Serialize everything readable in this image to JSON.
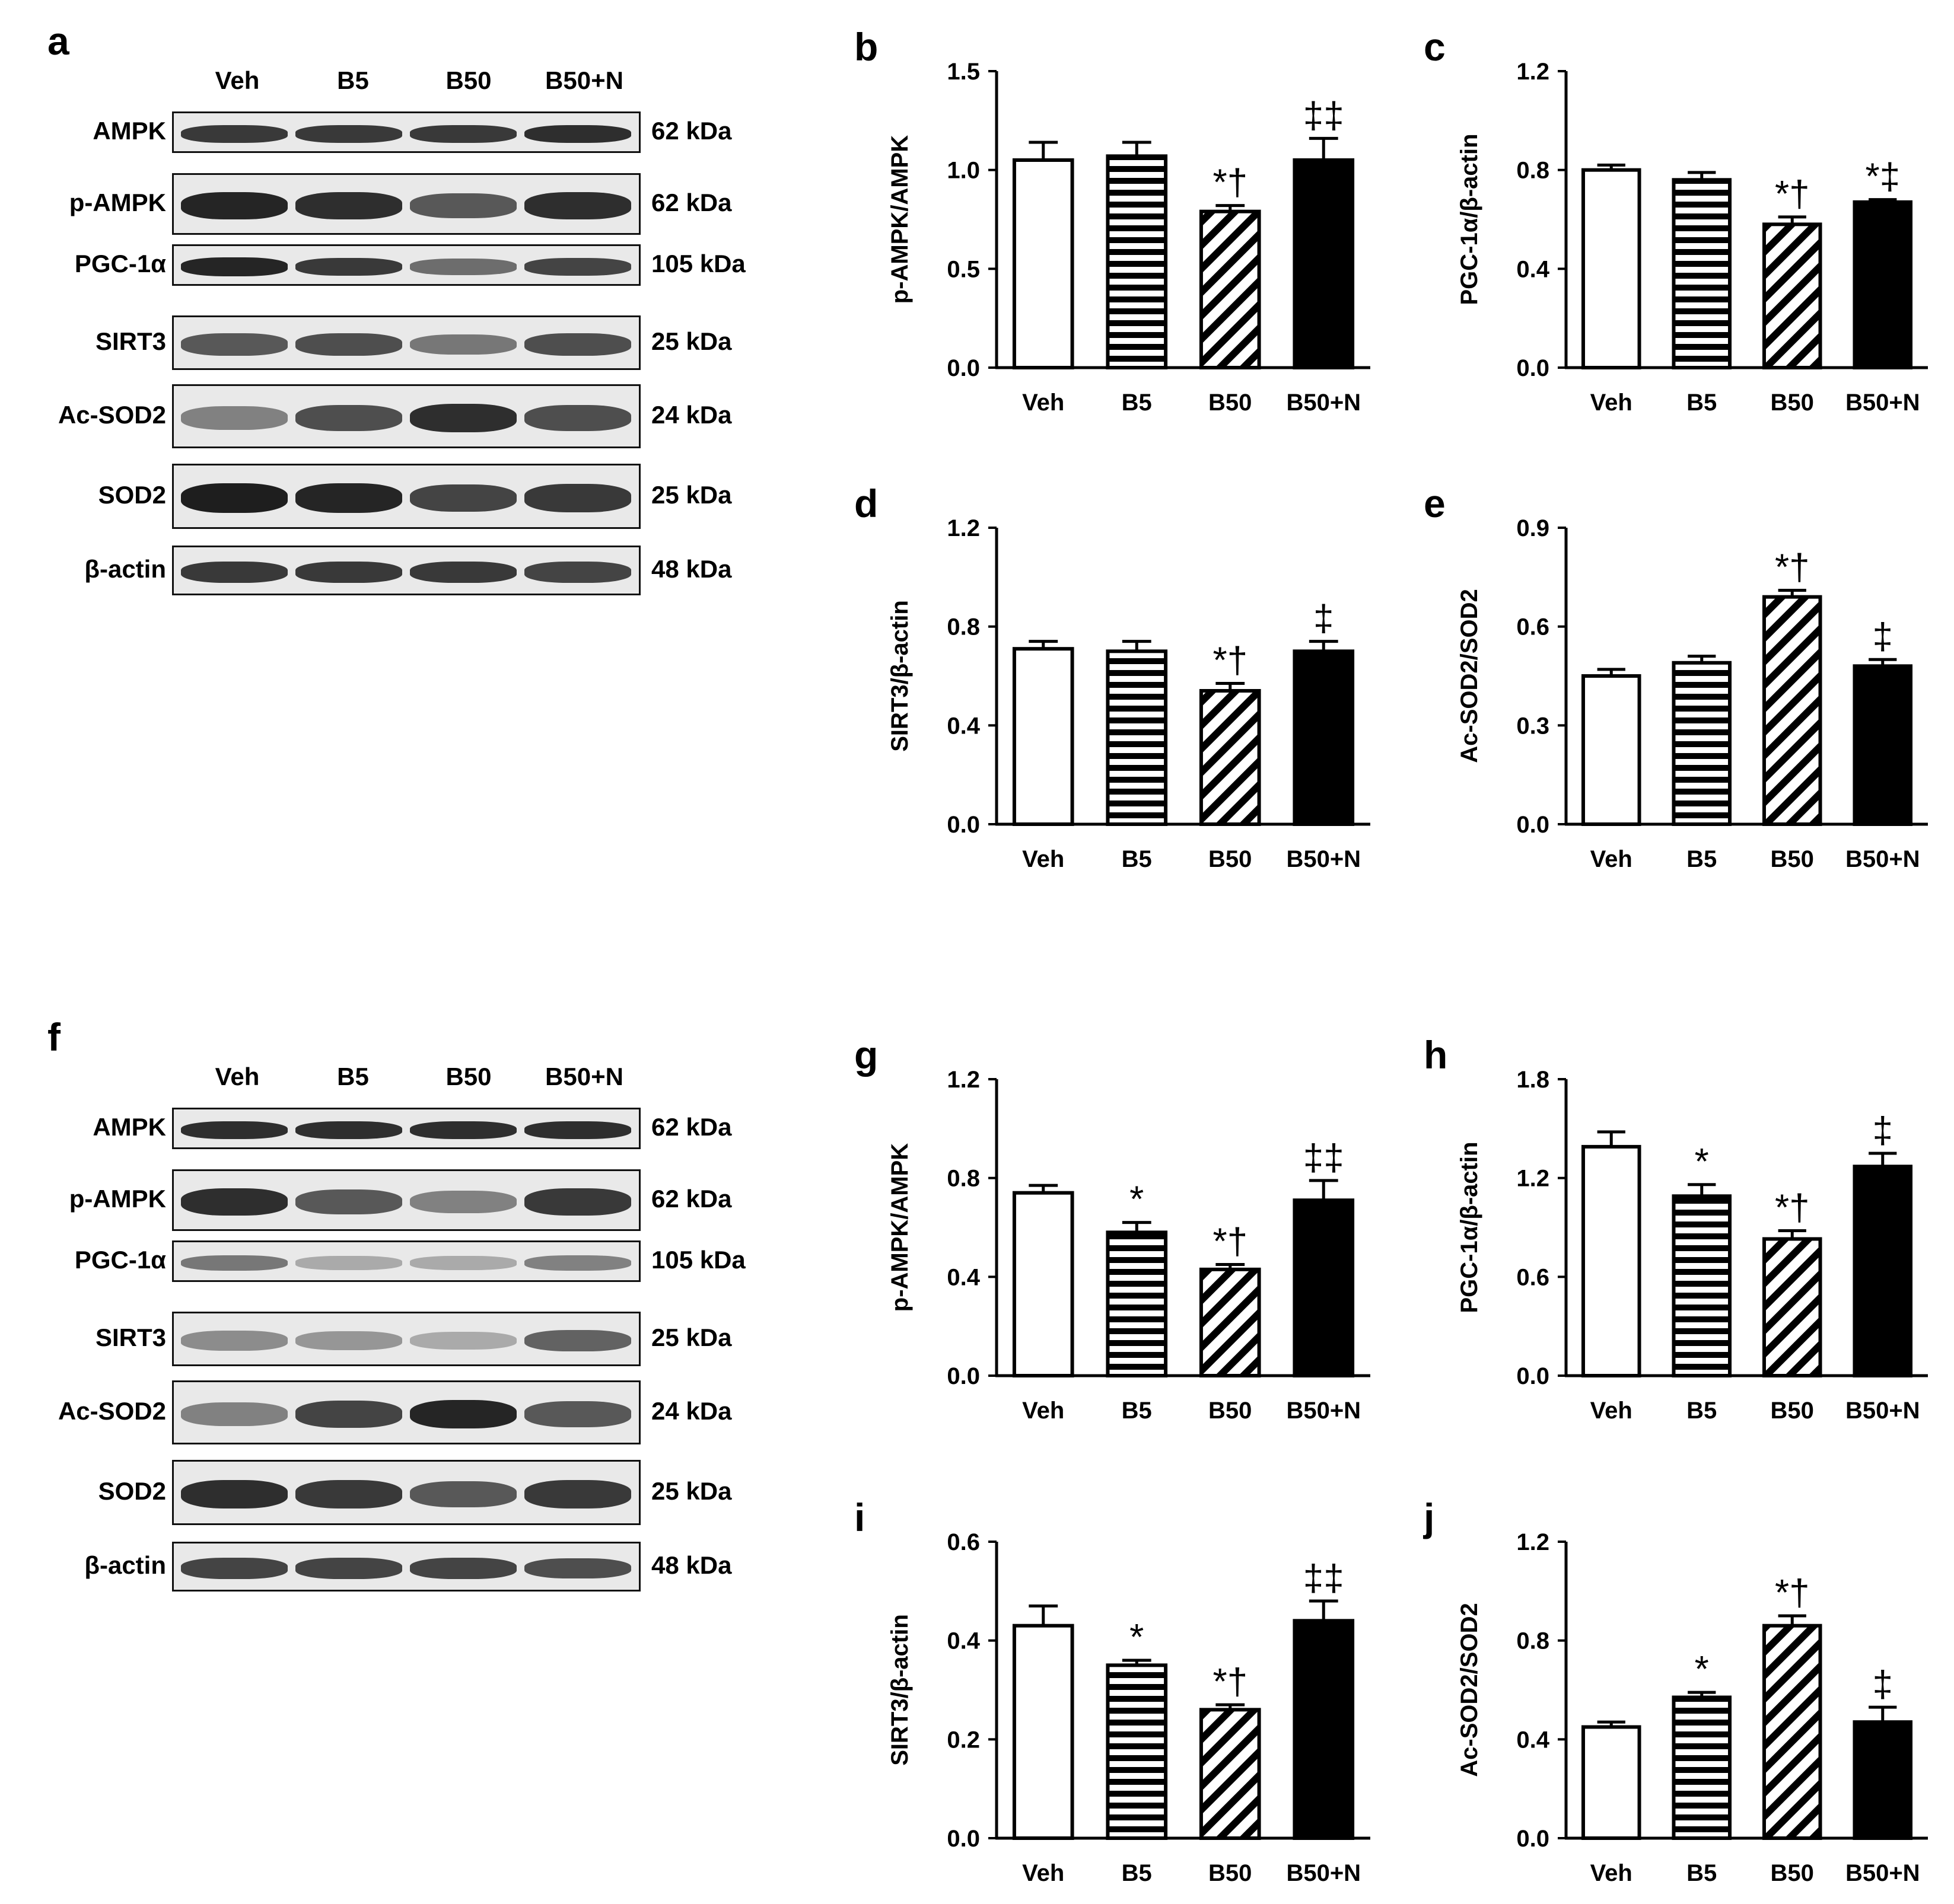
{
  "panel_letters": [
    "a",
    "b",
    "c",
    "d",
    "e",
    "f",
    "g",
    "h",
    "i",
    "j"
  ],
  "blots": [
    {
      "letter": "a",
      "lanes": [
        "Veh",
        "B5",
        "B50",
        "B50+N"
      ],
      "rows": [
        {
          "protein": "AMPK",
          "kda": "62 kDa",
          "intensity": [
            0.85,
            0.85,
            0.85,
            0.9
          ]
        },
        {
          "protein": "p-AMPK",
          "kda": "62 kDa",
          "intensity": [
            0.95,
            0.9,
            0.7,
            0.9
          ]
        },
        {
          "protein": "PGC-1α",
          "kda": "105 kDa",
          "intensity": [
            0.95,
            0.85,
            0.6,
            0.8
          ]
        },
        {
          "protein": "SIRT3",
          "kda": "25 kDa",
          "intensity": [
            0.7,
            0.75,
            0.55,
            0.75
          ]
        },
        {
          "protein": "Ac-SOD2",
          "kda": "24 kDa",
          "intensity": [
            0.5,
            0.75,
            0.9,
            0.75
          ]
        },
        {
          "protein": "SOD2",
          "kda": "25 kDa",
          "intensity": [
            0.98,
            0.95,
            0.8,
            0.85
          ]
        },
        {
          "protein": "β-actin",
          "kda": "48 kDa",
          "intensity": [
            0.85,
            0.85,
            0.85,
            0.8
          ]
        }
      ]
    },
    {
      "letter": "f",
      "lanes": [
        "Veh",
        "B5",
        "B50",
        "B50+N"
      ],
      "rows": [
        {
          "protein": "AMPK",
          "kda": "62 kDa",
          "intensity": [
            0.9,
            0.9,
            0.9,
            0.9
          ]
        },
        {
          "protein": "p-AMPK",
          "kda": "62 kDa",
          "intensity": [
            0.9,
            0.7,
            0.5,
            0.85
          ]
        },
        {
          "protein": "PGC-1α",
          "kda": "105 kDa",
          "intensity": [
            0.55,
            0.3,
            0.3,
            0.5
          ]
        },
        {
          "protein": "SIRT3",
          "kda": "25 kDa",
          "intensity": [
            0.45,
            0.4,
            0.3,
            0.65
          ]
        },
        {
          "protein": "Ac-SOD2",
          "kda": "24 kDa",
          "intensity": [
            0.5,
            0.8,
            0.95,
            0.7
          ]
        },
        {
          "protein": "SOD2",
          "kda": "25 kDa",
          "intensity": [
            0.9,
            0.85,
            0.7,
            0.85
          ]
        },
        {
          "protein": "β-actin",
          "kda": "48 kDa",
          "intensity": [
            0.8,
            0.8,
            0.8,
            0.75
          ]
        }
      ]
    }
  ],
  "chart_data": [
    {
      "letter": "b",
      "type": "bar",
      "categories": [
        "Veh",
        "B5",
        "B50",
        "B50+N"
      ],
      "ylabel": "p-AMPK/AMPK",
      "ylim": [
        0,
        1.5
      ],
      "yticks": [
        "0.0",
        "0.5",
        "1.0",
        "1.5"
      ],
      "values": [
        1.05,
        1.07,
        0.79,
        1.05
      ],
      "errors": [
        0.09,
        0.07,
        0.03,
        0.11
      ],
      "annotations": [
        "",
        "",
        "*†",
        "‡‡"
      ]
    },
    {
      "letter": "c",
      "type": "bar",
      "categories": [
        "Veh",
        "B5",
        "B50",
        "B50+N"
      ],
      "ylabel": "PGC-1α/β-actin",
      "ylim": [
        0,
        1.2
      ],
      "yticks": [
        "0.0",
        "0.4",
        "0.8",
        "1.2"
      ],
      "values": [
        0.8,
        0.76,
        0.58,
        0.67
      ],
      "errors": [
        0.02,
        0.03,
        0.03,
        0.01
      ],
      "annotations": [
        "",
        "",
        "*†",
        "*‡"
      ]
    },
    {
      "letter": "d",
      "type": "bar",
      "categories": [
        "Veh",
        "B5",
        "B50",
        "B50+N"
      ],
      "ylabel": "SIRT3/β-actin",
      "ylim": [
        0,
        1.2
      ],
      "yticks": [
        "0.0",
        "0.4",
        "0.8",
        "1.2"
      ],
      "values": [
        0.71,
        0.7,
        0.54,
        0.7
      ],
      "errors": [
        0.03,
        0.04,
        0.03,
        0.04
      ],
      "annotations": [
        "",
        "",
        "*†",
        "‡"
      ]
    },
    {
      "letter": "e",
      "type": "bar",
      "categories": [
        "Veh",
        "B5",
        "B50",
        "B50+N"
      ],
      "ylabel": "Ac-SOD2/SOD2",
      "ylim": [
        0,
        0.9
      ],
      "yticks": [
        "0.0",
        "0.3",
        "0.6",
        "0.9"
      ],
      "values": [
        0.45,
        0.49,
        0.69,
        0.48
      ],
      "errors": [
        0.02,
        0.02,
        0.02,
        0.02
      ],
      "annotations": [
        "",
        "",
        "*†",
        "‡"
      ]
    },
    {
      "letter": "g",
      "type": "bar",
      "categories": [
        "Veh",
        "B5",
        "B50",
        "B50+N"
      ],
      "ylabel": "p-AMPK/AMPK",
      "ylim": [
        0,
        1.2
      ],
      "yticks": [
        "0.0",
        "0.4",
        "0.8",
        "1.2"
      ],
      "values": [
        0.74,
        0.58,
        0.43,
        0.71
      ],
      "errors": [
        0.03,
        0.04,
        0.02,
        0.08
      ],
      "annotations": [
        "",
        "*",
        "*†",
        "‡‡"
      ]
    },
    {
      "letter": "h",
      "type": "bar",
      "categories": [
        "Veh",
        "B5",
        "B50",
        "B50+N"
      ],
      "ylabel": "PGC-1α/β-actin",
      "ylim": [
        0,
        1.8
      ],
      "yticks": [
        "0.0",
        "0.6",
        "1.2",
        "1.8"
      ],
      "values": [
        1.39,
        1.09,
        0.83,
        1.27
      ],
      "errors": [
        0.09,
        0.07,
        0.05,
        0.08
      ],
      "annotations": [
        "",
        "*",
        "*†",
        "‡"
      ]
    },
    {
      "letter": "i",
      "type": "bar",
      "categories": [
        "Veh",
        "B5",
        "B50",
        "B50+N"
      ],
      "ylabel": "SIRT3/β-actin",
      "ylim": [
        0,
        0.6
      ],
      "yticks": [
        "0.0",
        "0.2",
        "0.4",
        "0.6"
      ],
      "values": [
        0.43,
        0.35,
        0.26,
        0.44
      ],
      "errors": [
        0.04,
        0.01,
        0.01,
        0.04
      ],
      "annotations": [
        "",
        "*",
        "*†",
        "‡‡"
      ]
    },
    {
      "letter": "j",
      "type": "bar",
      "categories": [
        "Veh",
        "B5",
        "B50",
        "B50+N"
      ],
      "ylabel": "Ac-SOD2/SOD2",
      "ylim": [
        0,
        1.2
      ],
      "yticks": [
        "0.0",
        "0.4",
        "0.8",
        "1.2"
      ],
      "values": [
        0.45,
        0.57,
        0.86,
        0.47
      ],
      "errors": [
        0.02,
        0.02,
        0.04,
        0.06
      ],
      "annotations": [
        "",
        "*",
        "*†",
        "‡"
      ]
    }
  ]
}
